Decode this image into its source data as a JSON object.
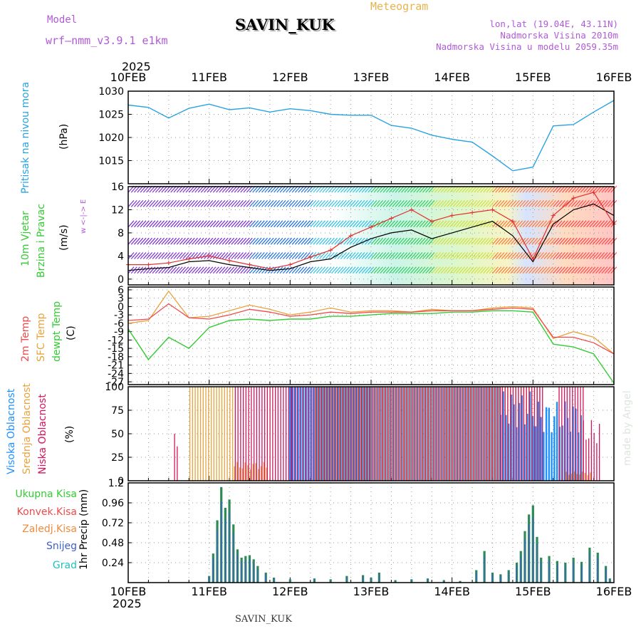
{
  "header": {
    "model_label": "Model",
    "model_name": "wrf–nmm_v3.9.1  e1km",
    "station": "SAVIN_KUK",
    "meteogram_label": "Meteogram",
    "lonlat": "lon,lat (19.04E, 43.11N)",
    "altitude": "Nadmorska Visina 2010m",
    "model_altitude": "Nadmorska Visina u modelu 2059.35m",
    "year_top": "2025",
    "year_bottom": "2025",
    "footer_station": "SAVIN_KUK",
    "credit": "made by Angel"
  },
  "colors": {
    "pressure": "#29a3e0",
    "temp2m": "#f04a4a",
    "sfc_temp": "#e8a23c",
    "dewpoint": "#33cc33",
    "high_cloud": "#1e90ff",
    "mid_cloud": "#e8a23c",
    "low_cloud": "#d4145a",
    "total_precip": "#2e8b57",
    "snow": "#3b5fd0",
    "model_label": "#b05ad8"
  },
  "dates": [
    "10FEB",
    "11FEB",
    "12FEB",
    "13FEB",
    "14FEB",
    "15FEB",
    "16FEB"
  ],
  "chart_data": [
    {
      "type": "line",
      "id": "pressure",
      "ylabel": "Pritisak na nivou mora",
      "unit": "(hPa)",
      "ylim": [
        1010,
        1030
      ],
      "yticks": [
        1015,
        1020,
        1025,
        1030
      ],
      "grid": true,
      "x": [
        0,
        0.25,
        0.5,
        0.75,
        1,
        1.25,
        1.5,
        1.75,
        2,
        2.25,
        2.5,
        2.75,
        3,
        3.25,
        3.5,
        3.75,
        4,
        4.25,
        4.5,
        4.75,
        5,
        5.25,
        5.5,
        5.75,
        6
      ],
      "series": [
        {
          "values": [
            1027,
            1026.5,
            1024.2,
            1026.3,
            1027.2,
            1026.0,
            1026.4,
            1025.5,
            1026.2,
            1025.8,
            1025.0,
            1024.8,
            1024.8,
            1022.6,
            1022.0,
            1020.5,
            1019.6,
            1019.0,
            1016.0,
            1012.8,
            1013.6,
            1022.5,
            1022.8,
            1025.5,
            1028.0
          ]
        }
      ]
    },
    {
      "type": "line",
      "id": "wind",
      "ylabel": [
        "10m Vjetar",
        "Brzina i Pravac"
      ],
      "unit": "(m/s)",
      "compass": "w  <-|->  E",
      "ylim": [
        -1,
        16
      ],
      "yticks": [
        0,
        4,
        8,
        12,
        16
      ],
      "grid": true,
      "x": [
        0,
        0.25,
        0.5,
        0.75,
        1,
        1.25,
        1.5,
        1.75,
        2,
        2.25,
        2.5,
        2.75,
        3,
        3.25,
        3.5,
        3.75,
        4,
        4.25,
        4.5,
        4.75,
        5,
        5.25,
        5.5,
        5.75,
        6
      ],
      "series": [
        {
          "name": "speed",
          "values": [
            1.5,
            1.8,
            2.0,
            3.0,
            3.2,
            2.5,
            2.0,
            1.5,
            1.8,
            3.0,
            3.5,
            5.5,
            7.0,
            8.0,
            8.5,
            7.0,
            8.0,
            9.0,
            10.0,
            7.5,
            3.0,
            9.5,
            12.0,
            13.0,
            11.0
          ]
        },
        {
          "name": "gust",
          "values": [
            2.5,
            2.5,
            2.8,
            3.5,
            4.0,
            3.2,
            2.5,
            1.8,
            2.5,
            3.8,
            5.0,
            7.5,
            9.0,
            10.5,
            12.0,
            10.0,
            11.0,
            11.5,
            12.0,
            10.0,
            3.5,
            11.0,
            14.0,
            15.0,
            9.5
          ]
        }
      ]
    },
    {
      "type": "line",
      "id": "temperature",
      "ylabel": [
        "2m Temp",
        "SFC Temp",
        "dewpt Temp"
      ],
      "unit": "(C)",
      "ylim": [
        -28,
        7
      ],
      "yticks": [
        6,
        3,
        0,
        -3,
        -6,
        -9,
        -12,
        -15,
        -18,
        -21,
        -24,
        -27
      ],
      "grid": true,
      "x": [
        0,
        0.25,
        0.5,
        0.75,
        1,
        1.25,
        1.5,
        1.75,
        2,
        2.25,
        2.5,
        2.75,
        3,
        3.25,
        3.5,
        3.75,
        4,
        4.25,
        4.5,
        4.75,
        5,
        5.25,
        5.5,
        5.75,
        6
      ],
      "series": [
        {
          "name": "2m Temp",
          "values": [
            -5,
            -4.5,
            1.0,
            -4,
            -4.5,
            -3.0,
            -1.0,
            -2.0,
            -3.5,
            -3.0,
            -2.0,
            -2.5,
            -2.0,
            -2.0,
            -2.0,
            -1.5,
            -1.5,
            -1.5,
            -1.0,
            -0.5,
            -1.0,
            -11.0,
            -11.0,
            -13.0,
            -17.0
          ]
        },
        {
          "name": "SFC Temp",
          "values": [
            -6,
            -5.0,
            5.5,
            -4,
            -3.5,
            -1.5,
            0.5,
            -1.0,
            -3.0,
            -2.0,
            -0.5,
            -2.0,
            -1.5,
            -1.5,
            -2.0,
            -1.0,
            -1.5,
            -1.5,
            -0.5,
            0.0,
            -0.5,
            -11.5,
            -9.0,
            -11.0,
            -17.0
          ]
        },
        {
          "name": "dewpt Temp",
          "values": [
            -8,
            -19.0,
            -11.0,
            -15.0,
            -7.5,
            -5.0,
            -4.5,
            -5.0,
            -4.5,
            -4.5,
            -3.5,
            -3.5,
            -3.0,
            -2.5,
            -2.5,
            -2.5,
            -2.0,
            -2.0,
            -1.5,
            -1.5,
            -2.0,
            -13.5,
            -14.5,
            -17.0,
            -27.5
          ]
        }
      ]
    },
    {
      "type": "bar",
      "id": "clouds",
      "ylabel": [
        "Visoka Oblacnost",
        "Srednja Oblacnost",
        "Niska Oblacnost"
      ],
      "unit": "(%)",
      "ylim": [
        0,
        100
      ],
      "yticks": [
        0,
        25,
        50,
        75,
        100
      ],
      "grid": true,
      "series": [
        {
          "name": "Visoka Oblacnost",
          "segments": [
            [
              2.0,
              3.0,
              100
            ],
            [
              3.0,
              4.6,
              100
            ],
            [
              4.6,
              5.0,
              95
            ],
            [
              5.0,
              5.6,
              85
            ]
          ]
        },
        {
          "name": "Srednja Oblacnost",
          "segments": [
            [
              0.75,
              1.3,
              100
            ],
            [
              1.3,
              1.7,
              20
            ],
            [
              2.3,
              5.1,
              100
            ],
            [
              5.4,
              5.7,
              10
            ]
          ]
        },
        {
          "name": "Niska Oblacnost",
          "segments": [
            [
              0.55,
              0.6,
              50
            ],
            [
              1.3,
              2.0,
              100
            ],
            [
              2.0,
              4.6,
              100
            ],
            [
              4.6,
              5.1,
              100
            ],
            [
              5.3,
              5.6,
              100
            ],
            [
              5.6,
              5.8,
              65
            ]
          ]
        }
      ]
    },
    {
      "type": "bar",
      "id": "precip",
      "ylabel": "1hr Precip",
      "unit": "(mm)",
      "legend": [
        "Ukupna Kisa",
        "Konvek.Kisa",
        "Zaledj.Kisa",
        "Snijeg",
        "Grad"
      ],
      "ylim": [
        0,
        1.2
      ],
      "yticks": [
        0.24,
        0.48,
        0.72,
        0.96,
        1.2
      ],
      "grid": true,
      "x": [
        1.0,
        1.05,
        1.1,
        1.15,
        1.2,
        1.25,
        1.3,
        1.35,
        1.4,
        1.45,
        1.5,
        1.55,
        1.6,
        1.7,
        1.8,
        2.0,
        2.3,
        2.5,
        2.7,
        2.9,
        3.0,
        3.1,
        3.3,
        3.5,
        3.7,
        3.9,
        4.1,
        4.3,
        4.4,
        4.5,
        4.6,
        4.7,
        4.8,
        4.85,
        4.9,
        4.95,
        5.0,
        5.05,
        5.1,
        5.2,
        5.3,
        5.4,
        5.5,
        5.6,
        5.7,
        5.8,
        5.9,
        5.95
      ],
      "series": [
        {
          "name": "Ukupna Kisa",
          "values": [
            0.08,
            0.35,
            0.75,
            1.15,
            0.9,
            1.0,
            0.7,
            0.4,
            0.3,
            0.32,
            0.33,
            0.28,
            0.2,
            0.12,
            0.06,
            0.04,
            0.05,
            0.04,
            0.08,
            0.09,
            0.06,
            0.12,
            0.03,
            0.04,
            0.05,
            0.03,
            0.02,
            0.15,
            0.38,
            0.12,
            0.1,
            0.15,
            0.24,
            0.38,
            0.62,
            0.82,
            0.93,
            0.55,
            0.3,
            0.32,
            0.26,
            0.24,
            0.3,
            0.25,
            0.42,
            0.36,
            0.2,
            0.05
          ]
        }
      ]
    }
  ]
}
